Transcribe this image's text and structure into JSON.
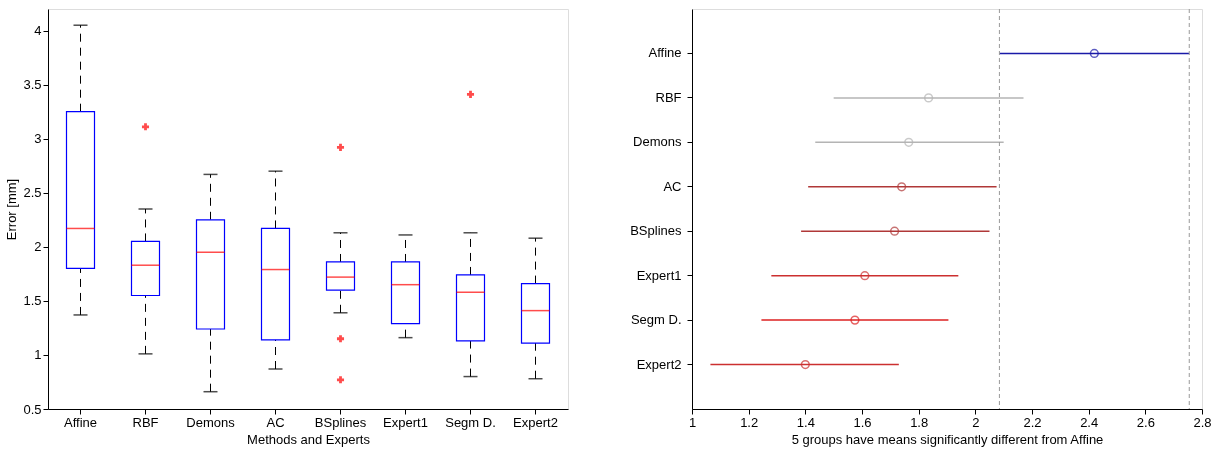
{
  "chart_data": [
    {
      "type": "box",
      "ylabel": "Error [mm]",
      "xlabel": "Methods and Experts",
      "categories": [
        "Affine",
        "RBF",
        "Demons",
        "AC",
        "BSplines",
        "Expert1",
        "Segm D.",
        "Expert2"
      ],
      "boxes": [
        {
          "low": 1.37,
          "q1": 1.8,
          "median": 2.17,
          "q3": 3.25,
          "high": 4.05
        },
        {
          "low": 1.01,
          "q1": 1.55,
          "median": 1.83,
          "q3": 2.05,
          "high": 2.35,
          "outliers": [
            3.11
          ]
        },
        {
          "low": 0.66,
          "q1": 1.24,
          "median": 1.95,
          "q3": 2.25,
          "high": 2.67
        },
        {
          "low": 0.87,
          "q1": 1.14,
          "median": 1.79,
          "q3": 2.17,
          "high": 2.7
        },
        {
          "low": 1.39,
          "q1": 1.6,
          "median": 1.72,
          "q3": 1.86,
          "high": 2.13,
          "outliers": [
            2.92,
            1.15,
            0.77
          ]
        },
        {
          "low": 1.16,
          "q1": 1.29,
          "median": 1.65,
          "q3": 1.86,
          "high": 2.11
        },
        {
          "low": 0.8,
          "q1": 1.13,
          "median": 1.58,
          "q3": 1.74,
          "high": 2.13,
          "outliers": [
            3.41
          ]
        },
        {
          "low": 0.78,
          "q1": 1.11,
          "median": 1.41,
          "q3": 1.66,
          "high": 2.08
        }
      ],
      "color": "#0000ff",
      "ylim": [
        0.5,
        4.2
      ],
      "yticks": [
        0.5,
        1,
        1.5,
        2,
        2.5,
        3,
        3.5,
        4
      ],
      "grid": false
    },
    {
      "type": "scatter",
      "orientation": "horizontal",
      "xlabel": "5 groups have means significantly different from Affine",
      "categories": [
        "Affine",
        "RBF",
        "Demons",
        "AC",
        "BSplines",
        "Expert1",
        "Segm D.",
        "Expert2"
      ],
      "values": [
        2.42,
        1.835,
        1.765,
        1.74,
        1.715,
        1.61,
        1.575,
        1.4
      ],
      "errors": [
        [
          2.085,
          2.755
        ],
        [
          1.5,
          2.17
        ],
        [
          1.435,
          2.1
        ],
        [
          1.41,
          2.075
        ],
        [
          1.385,
          2.05
        ],
        [
          1.28,
          1.94
        ],
        [
          1.245,
          1.905
        ],
        [
          1.065,
          1.73
        ]
      ],
      "colors": [
        "#1a1aa8",
        "#b4b4b4",
        "#b4b4b4",
        "#b03838",
        "#b03838",
        "#cc3030",
        "#dd2020",
        "#cc3030"
      ],
      "marker": "circle",
      "xlim": [
        1,
        2.8
      ],
      "xticks": [
        1,
        1.2,
        1.4,
        1.6,
        1.8,
        2,
        2.2,
        2.4,
        2.6,
        2.8
      ],
      "ref_lines": [
        {
          "axis": "x",
          "value": 2.085,
          "label": null,
          "color": "#999999",
          "line_style": "dashed"
        },
        {
          "axis": "x",
          "value": 2.755,
          "label": null,
          "color": "#999999",
          "line_style": "dashed"
        }
      ],
      "grid": false
    }
  ]
}
